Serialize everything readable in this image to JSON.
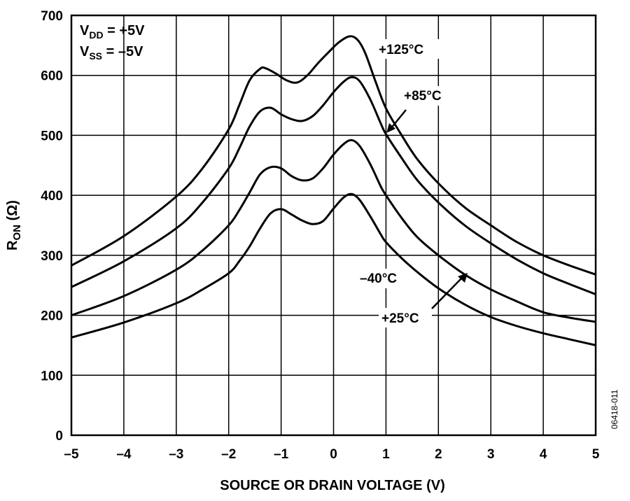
{
  "chart_data": {
    "type": "line",
    "xlabel": "SOURCE OR DRAIN VOLTAGE (V)",
    "ylabel_main": "R",
    "ylabel_sub": "ON",
    "ylabel_unit": " (Ω)",
    "xlim": [
      -5,
      5
    ],
    "ylim": [
      0,
      700
    ],
    "xticks": [
      -5,
      -4,
      -3,
      -2,
      -1,
      0,
      1,
      2,
      3,
      4,
      5
    ],
    "xtick_labels": [
      "–5",
      "–4",
      "–3",
      "–2",
      "–1",
      "0",
      "1",
      "2",
      "3",
      "4",
      "5"
    ],
    "yticks": [
      0,
      100,
      200,
      300,
      400,
      500,
      600,
      700
    ],
    "ytick_labels": [
      "0",
      "100",
      "200",
      "300",
      "400",
      "500",
      "600",
      "700"
    ],
    "grid": true,
    "conditions": [
      {
        "main": "V",
        "sub": "DD",
        "rest": " = +5V"
      },
      {
        "main": "V",
        "sub": "SS",
        "rest": " = –5V"
      }
    ],
    "figure_code": "06418-011",
    "series": [
      {
        "name": "+125°C",
        "x": [
          -5,
          -4,
          -3,
          -2.5,
          -2,
          -1.8,
          -1.6,
          -1.4,
          -1.3,
          -1.1,
          -0.9,
          -0.7,
          -0.5,
          -0.3,
          -0.1,
          0.1,
          0.3,
          0.45,
          0.6,
          0.8,
          1.0,
          1.3,
          1.6,
          2,
          2.5,
          3,
          3.5,
          4,
          4.5,
          5
        ],
        "y": [
          283,
          332,
          398,
          445,
          510,
          550,
          592,
          611,
          612,
          603,
          592,
          588,
          600,
          620,
          638,
          655,
          665,
          660,
          638,
          590,
          545,
          500,
          460,
          420,
          380,
          350,
          322,
          300,
          283,
          268
        ]
      },
      {
        "name": "+85°C",
        "x": [
          -5,
          -4,
          -3,
          -2.5,
          -2,
          -1.8,
          -1.6,
          -1.4,
          -1.2,
          -1.0,
          -0.8,
          -0.6,
          -0.4,
          -0.2,
          0,
          0.2,
          0.35,
          0.5,
          0.7,
          0.9,
          1.0,
          1.3,
          1.6,
          2,
          2.5,
          3,
          3.5,
          4,
          4.5,
          5
        ],
        "y": [
          247,
          290,
          345,
          388,
          445,
          478,
          515,
          540,
          546,
          535,
          527,
          524,
          532,
          550,
          572,
          590,
          597,
          590,
          560,
          520,
          502,
          462,
          425,
          388,
          350,
          320,
          293,
          270,
          252,
          235
        ]
      },
      {
        "name": "+25°C",
        "x": [
          -5,
          -4,
          -3,
          -2.5,
          -2,
          -1.8,
          -1.6,
          -1.4,
          -1.2,
          -1.0,
          -0.8,
          -0.6,
          -0.4,
          -0.2,
          0,
          0.2,
          0.35,
          0.5,
          0.7,
          0.9,
          1.0,
          1.3,
          1.6,
          2,
          2.5,
          3,
          3.5,
          4,
          4.5,
          5
        ],
        "y": [
          200,
          232,
          276,
          308,
          350,
          375,
          405,
          435,
          447,
          445,
          432,
          425,
          428,
          445,
          468,
          486,
          492,
          482,
          452,
          415,
          400,
          362,
          330,
          300,
          268,
          243,
          223,
          205,
          196,
          189
        ]
      },
      {
        "name": "–40°C",
        "x": [
          -5,
          -4,
          -3,
          -2.5,
          -2,
          -1.8,
          -1.6,
          -1.4,
          -1.2,
          -1.0,
          -0.8,
          -0.6,
          -0.4,
          -0.2,
          0,
          0.2,
          0.35,
          0.5,
          0.7,
          0.9,
          1.0,
          1.3,
          1.6,
          2,
          2.5,
          3,
          3.5,
          4,
          4.5,
          5
        ],
        "y": [
          163,
          188,
          220,
          243,
          270,
          290,
          315,
          345,
          370,
          377,
          368,
          358,
          352,
          357,
          378,
          397,
          402,
          392,
          365,
          335,
          322,
          295,
          272,
          245,
          218,
          197,
          182,
          170,
          160,
          150
        ]
      }
    ]
  }
}
